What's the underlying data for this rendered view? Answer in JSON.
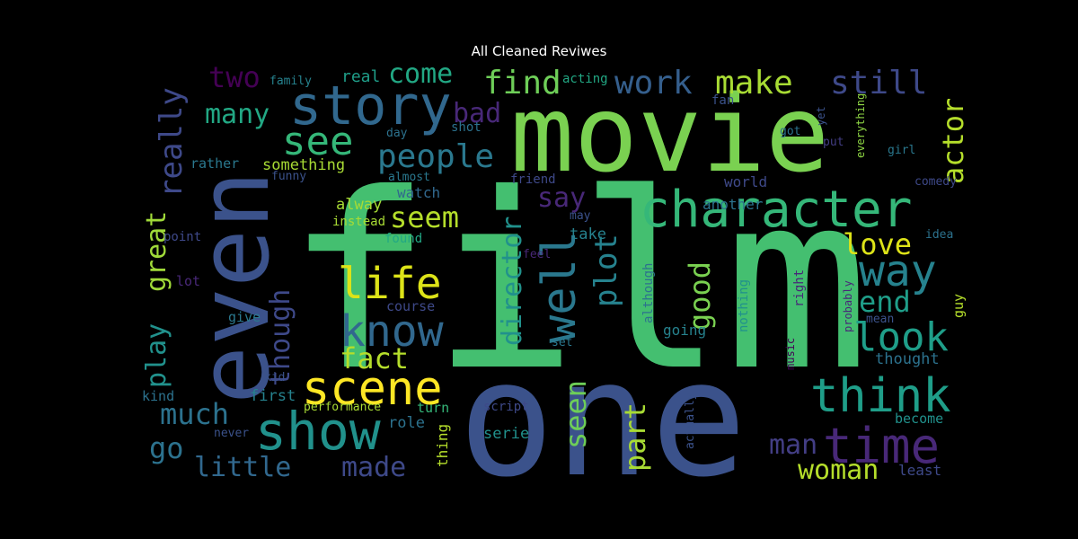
{
  "title": "All Cleaned Reviwes",
  "words": [
    {
      "text": "film",
      "color": "#44bf70",
      "rotate": false
    },
    {
      "text": "one",
      "color": "#3b528b",
      "rotate": false
    },
    {
      "text": "movie",
      "color": "#7ad151",
      "rotate": false
    },
    {
      "text": "even",
      "color": "#3b528b",
      "rotate": true
    },
    {
      "text": "character",
      "color": "#35b779",
      "rotate": false
    },
    {
      "text": "story",
      "color": "#31688e",
      "rotate": false
    },
    {
      "text": "show",
      "color": "#21918c",
      "rotate": false
    },
    {
      "text": "time",
      "color": "#482878",
      "rotate": false
    },
    {
      "text": "think",
      "color": "#1f9e89",
      "rotate": false
    },
    {
      "text": "scene",
      "color": "#fde725",
      "rotate": false
    },
    {
      "text": "know",
      "color": "#31688e",
      "rotate": false
    },
    {
      "text": "life",
      "color": "#dde318",
      "rotate": false
    },
    {
      "text": "way",
      "color": "#26828e",
      "rotate": false
    },
    {
      "text": "look",
      "color": "#1f9e89",
      "rotate": false
    },
    {
      "text": "well",
      "color": "#2a788e",
      "rotate": true
    },
    {
      "text": "see",
      "color": "#35b779",
      "rotate": false
    },
    {
      "text": "people",
      "color": "#2a788e",
      "rotate": false
    },
    {
      "text": "find",
      "color": "#6ece58",
      "rotate": false
    },
    {
      "text": "work",
      "color": "#355f8d",
      "rotate": false
    },
    {
      "text": "make",
      "color": "#a8db34",
      "rotate": false
    },
    {
      "text": "still",
      "color": "#3e4989",
      "rotate": false
    },
    {
      "text": "come",
      "color": "#22a884",
      "rotate": false
    },
    {
      "text": "two",
      "color": "#440154",
      "rotate": false
    },
    {
      "text": "many",
      "color": "#22a884",
      "rotate": false
    },
    {
      "text": "bad",
      "color": "#482878",
      "rotate": false
    },
    {
      "text": "really",
      "color": "#3e4989",
      "rotate": true
    },
    {
      "text": "actor",
      "color": "#b5de2b",
      "rotate": true
    },
    {
      "text": "say",
      "color": "#482878",
      "rotate": false
    },
    {
      "text": "seem",
      "color": "#b5de2b",
      "rotate": false
    },
    {
      "text": "love",
      "color": "#dde318",
      "rotate": false
    },
    {
      "text": "good",
      "color": "#7ad151",
      "rotate": true
    },
    {
      "text": "end",
      "color": "#1f9e89",
      "rotate": false
    },
    {
      "text": "plot",
      "color": "#26828e",
      "rotate": true
    },
    {
      "text": "director",
      "color": "#21918c",
      "rotate": true
    },
    {
      "text": "fact",
      "color": "#b5de2b",
      "rotate": false
    },
    {
      "text": "though",
      "color": "#3e4989",
      "rotate": true
    },
    {
      "text": "great",
      "color": "#a0da39",
      "rotate": true
    },
    {
      "text": "play",
      "color": "#21918c",
      "rotate": true
    },
    {
      "text": "much",
      "color": "#2c728e",
      "rotate": false
    },
    {
      "text": "go",
      "color": "#2c728e",
      "rotate": false
    },
    {
      "text": "little",
      "color": "#31688e",
      "rotate": false
    },
    {
      "text": "made",
      "color": "#3e4989",
      "rotate": false
    },
    {
      "text": "seen",
      "color": "#6ece58",
      "rotate": true
    },
    {
      "text": "part",
      "color": "#a8db34",
      "rotate": true
    },
    {
      "text": "man",
      "color": "#433e85",
      "rotate": false
    },
    {
      "text": "woman",
      "color": "#b5de2b",
      "rotate": false
    },
    {
      "text": "something",
      "color": "#a8db34",
      "rotate": false
    },
    {
      "text": "rather",
      "color": "#2a788e",
      "rotate": false
    },
    {
      "text": "family",
      "color": "#26828e",
      "rotate": false
    },
    {
      "text": "real",
      "color": "#1f9e89",
      "rotate": false
    },
    {
      "text": "acting",
      "color": "#22a884",
      "rotate": false
    },
    {
      "text": "fan",
      "color": "#3b528b",
      "rotate": false
    },
    {
      "text": "day",
      "color": "#2c728e",
      "rotate": false
    },
    {
      "text": "shot",
      "color": "#2c728e",
      "rotate": false
    },
    {
      "text": "funny",
      "color": "#3b528b",
      "rotate": false
    },
    {
      "text": "almost",
      "color": "#2a788e",
      "rotate": false
    },
    {
      "text": "friend",
      "color": "#3e4989",
      "rotate": false
    },
    {
      "text": "watch",
      "color": "#31688e",
      "rotate": false
    },
    {
      "text": "alway",
      "color": "#a8db34",
      "rotate": false
    },
    {
      "text": "instead",
      "color": "#a8db34",
      "rotate": false
    },
    {
      "text": "found",
      "color": "#22a884",
      "rotate": false
    },
    {
      "text": "take",
      "color": "#26828e",
      "rotate": false
    },
    {
      "text": "may",
      "color": "#3b528b",
      "rotate": false
    },
    {
      "text": "feel",
      "color": "#482878",
      "rotate": false
    },
    {
      "text": "world",
      "color": "#3e4989",
      "rotate": false
    },
    {
      "text": "another",
      "color": "#2c728e",
      "rotate": false
    },
    {
      "text": "got",
      "color": "#2c728e",
      "rotate": false
    },
    {
      "text": "put",
      "color": "#433e85",
      "rotate": false
    },
    {
      "text": "yet",
      "color": "#3b528b",
      "rotate": true
    },
    {
      "text": "everything",
      "color": "#8fd744",
      "rotate": true
    },
    {
      "text": "girl",
      "color": "#2a788e",
      "rotate": false
    },
    {
      "text": "comedy",
      "color": "#3e4989",
      "rotate": false
    },
    {
      "text": "idea",
      "color": "#2c728e",
      "rotate": false
    },
    {
      "text": "point",
      "color": "#3e4989",
      "rotate": false
    },
    {
      "text": "lot",
      "color": "#482878",
      "rotate": false
    },
    {
      "text": "give",
      "color": "#2a788e",
      "rotate": false
    },
    {
      "text": "kid",
      "color": "#3b528b",
      "rotate": false
    },
    {
      "text": "kind",
      "color": "#2c728e",
      "rotate": false
    },
    {
      "text": "first",
      "color": "#26828e",
      "rotate": false
    },
    {
      "text": "course",
      "color": "#3e4989",
      "rotate": false
    },
    {
      "text": "performance",
      "color": "#a8db34",
      "rotate": false
    },
    {
      "text": "turn",
      "color": "#35b779",
      "rotate": false
    },
    {
      "text": "role",
      "color": "#2c728e",
      "rotate": false
    },
    {
      "text": "never",
      "color": "#3b528b",
      "rotate": false
    },
    {
      "text": "thing",
      "color": "#b5de2b",
      "rotate": true
    },
    {
      "text": "script",
      "color": "#3e4989",
      "rotate": false
    },
    {
      "text": "serie",
      "color": "#21918c",
      "rotate": false
    },
    {
      "text": "although",
      "color": "#2c728e",
      "rotate": true
    },
    {
      "text": "going",
      "color": "#26828e",
      "rotate": false
    },
    {
      "text": "set",
      "color": "#2a788e",
      "rotate": false
    },
    {
      "text": "nothing",
      "color": "#21918c",
      "rotate": true
    },
    {
      "text": "right",
      "color": "#482878",
      "rotate": true
    },
    {
      "text": "music",
      "color": "#440154",
      "rotate": true
    },
    {
      "text": "actually",
      "color": "#3b528b",
      "rotate": true
    },
    {
      "text": "probably",
      "color": "#482878",
      "rotate": true
    },
    {
      "text": "mean",
      "color": "#3b528b",
      "rotate": false
    },
    {
      "text": "guy",
      "color": "#b5de2b",
      "rotate": true
    },
    {
      "text": "thought",
      "color": "#2c728e",
      "rotate": false
    },
    {
      "text": "become",
      "color": "#21918c",
      "rotate": false
    },
    {
      "text": "least",
      "color": "#3e4989",
      "rotate": false
    }
  ]
}
